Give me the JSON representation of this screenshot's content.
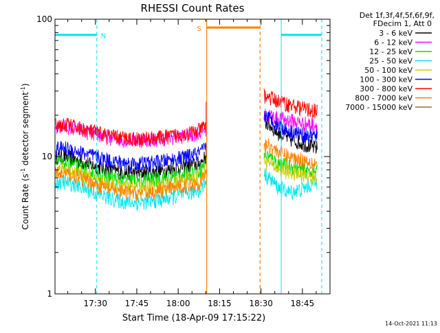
{
  "title": "RHESSI Count Rates",
  "xlabel": "Start Time (18-Apr-09 17:15:22)",
  "ylabel_main": "Count Rate (s",
  "ylabel_sup1": "-1",
  "ylabel_mid": " detector segment",
  "ylabel_sup2": "-1",
  "ylabel_end": ")",
  "timestamp": "14-Oct-2021 11:13",
  "legend_header_1": "Det 1f,3f,4f,5f,6f,9f,",
  "legend_header_2": "FDecim 1, Att 0",
  "colors": {
    "axis": "#000000",
    "attenuator": "#ff7f00",
    "night": "#00e5ee",
    "background": "#ffffff"
  },
  "chart_data": {
    "type": "line",
    "title": "RHESSI Count Rates",
    "xlabel": "Start Time (18-Apr-09 17:15:22)",
    "ylabel": "Count Rate (s^-1 detector segment^-1)",
    "y_scale": "log",
    "ylim": [
      1,
      100
    ],
    "xlim": [
      "17:15:22",
      "18:55:00"
    ],
    "x_ticks": [
      "17:30",
      "17:45",
      "18:00",
      "18:15",
      "18:30",
      "18:45"
    ],
    "y_ticks": [
      "1",
      "10",
      "100"
    ],
    "legend_placement": "right",
    "series": [
      {
        "name": "3 - 6 keV",
        "color": "#000000",
        "x": [
          "17:15:22",
          "17:20",
          "17:25",
          "17:30",
          "17:35",
          "17:40",
          "17:45",
          "17:50",
          "17:55",
          "18:00",
          "18:05",
          "18:08",
          "18:10",
          "18:31",
          "18:33",
          "18:36",
          "18:40",
          "18:45",
          "18:50"
        ],
        "values": [
          10,
          10,
          9.2,
          8.5,
          8,
          7.7,
          7.6,
          7.7,
          7.9,
          8.3,
          8.7,
          9,
          10,
          18,
          17,
          15,
          13.5,
          12.5,
          11.5
        ]
      },
      {
        "name": "6 - 12 keV",
        "color": "#ff00ff",
        "x": [
          "17:15:22",
          "17:20",
          "17:25",
          "17:30",
          "17:35",
          "17:40",
          "17:45",
          "17:50",
          "17:55",
          "18:00",
          "18:05",
          "18:08",
          "18:10",
          "18:31",
          "18:33",
          "18:36",
          "18:40",
          "18:45",
          "18:50"
        ],
        "values": [
          16.5,
          16.5,
          15.5,
          14.5,
          13.8,
          13.3,
          13.2,
          13.3,
          13.6,
          14,
          14.5,
          15,
          16,
          20,
          20,
          19,
          18.5,
          17.5,
          17
        ]
      },
      {
        "name": "12 - 25 keV",
        "color": "#00dd00",
        "x": [
          "17:15:22",
          "17:20",
          "17:25",
          "17:30",
          "17:35",
          "17:40",
          "17:45",
          "17:50",
          "17:55",
          "18:00",
          "18:05",
          "18:08",
          "18:10",
          "18:31",
          "18:33",
          "18:36",
          "18:40",
          "18:45",
          "18:50"
        ],
        "values": [
          9,
          9,
          8.3,
          7.6,
          7.1,
          6.8,
          6.7,
          6.8,
          7,
          7.3,
          7.7,
          8,
          9,
          10.5,
          10,
          9,
          8.5,
          8,
          7.7
        ]
      },
      {
        "name": "25 - 50 keV",
        "color": "#00e5ee",
        "x": [
          "17:15:22",
          "17:20",
          "17:25",
          "17:30",
          "17:35",
          "17:40",
          "17:45",
          "17:50",
          "17:55",
          "18:00",
          "18:05",
          "18:08",
          "18:10",
          "18:31",
          "18:33",
          "18:36",
          "18:40",
          "18:45",
          "18:50"
        ],
        "values": [
          6.5,
          6.5,
          6,
          5.4,
          5,
          4.7,
          4.6,
          4.7,
          4.9,
          5.2,
          5.5,
          5.8,
          6.5,
          7.5,
          7,
          6,
          5.5,
          5.8,
          6.5
        ]
      },
      {
        "name": "50 - 100 keV",
        "color": "#cccc00",
        "x": [
          "17:15:22",
          "17:20",
          "17:25",
          "17:30",
          "17:35",
          "17:40",
          "17:45",
          "17:50",
          "17:55",
          "18:00",
          "18:05",
          "18:08",
          "18:10",
          "18:31",
          "18:33",
          "18:36",
          "18:40",
          "18:45",
          "18:50"
        ],
        "values": [
          8,
          8,
          7.4,
          6.8,
          6.3,
          6,
          5.9,
          6,
          6.2,
          6.5,
          6.9,
          7.2,
          8,
          9.5,
          9,
          8.2,
          7.7,
          7.3,
          7
        ]
      },
      {
        "name": "100 - 300 keV",
        "color": "#0000ff",
        "x": [
          "17:15:22",
          "17:20",
          "17:25",
          "17:30",
          "17:35",
          "17:40",
          "17:45",
          "17:50",
          "17:55",
          "18:00",
          "18:05",
          "18:08",
          "18:10",
          "18:31",
          "18:33",
          "18:36",
          "18:40",
          "18:45",
          "18:50"
        ],
        "values": [
          11.5,
          11.5,
          10.7,
          10,
          9.4,
          9,
          8.9,
          9,
          9.3,
          9.7,
          10.2,
          10.7,
          11.5,
          20,
          19,
          17,
          15.5,
          14.5,
          14
        ]
      },
      {
        "name": "300 - 800 keV",
        "color": "#ff0000",
        "x": [
          "17:15:22",
          "17:20",
          "17:25",
          "17:30",
          "17:35",
          "17:40",
          "17:45",
          "17:50",
          "17:55",
          "18:00",
          "18:05",
          "18:08",
          "18:10",
          "18:31",
          "18:33",
          "18:36",
          "18:40",
          "18:45",
          "18:50"
        ],
        "values": [
          17,
          17,
          16,
          15,
          14.2,
          13.7,
          13.5,
          13.6,
          13.9,
          14.4,
          15,
          15.6,
          17,
          28,
          27,
          25.5,
          24,
          22.5,
          21.5
        ]
      },
      {
        "name": "800 - 7000 keV",
        "color": "#ff7f00",
        "x": [
          "17:15:22",
          "17:20",
          "17:25",
          "17:30",
          "17:35",
          "17:40",
          "17:45",
          "17:50",
          "17:55",
          "18:00",
          "18:05",
          "18:08",
          "18:10",
          "18:31",
          "18:33",
          "18:36",
          "18:40",
          "18:45",
          "18:50"
        ],
        "values": [
          7.5,
          7.5,
          6.9,
          6.3,
          5.8,
          5.5,
          5.4,
          5.5,
          5.7,
          6,
          6.3,
          6.6,
          7.5,
          12.5,
          12,
          11,
          10,
          9.5,
          9
        ]
      },
      {
        "name": "7000 - 15000 keV",
        "color": "#808000",
        "x": [],
        "values": []
      }
    ],
    "intervals": [
      {
        "label": "N",
        "kind": "night",
        "color": "#00e5ee",
        "start": "17:15:22",
        "end": "17:30:30",
        "value": 77
      },
      {
        "label": "",
        "kind": "night",
        "color": "#00e5ee",
        "start": "18:37:20",
        "end": "18:52:00",
        "value": 77
      },
      {
        "label": "S",
        "kind": "attenuator",
        "color": "#ff7f00",
        "start": "18:10:20",
        "end": "18:29:40",
        "value": 87
      }
    ],
    "data_gap": {
      "start": "18:10:20",
      "end": "18:31:00"
    }
  }
}
